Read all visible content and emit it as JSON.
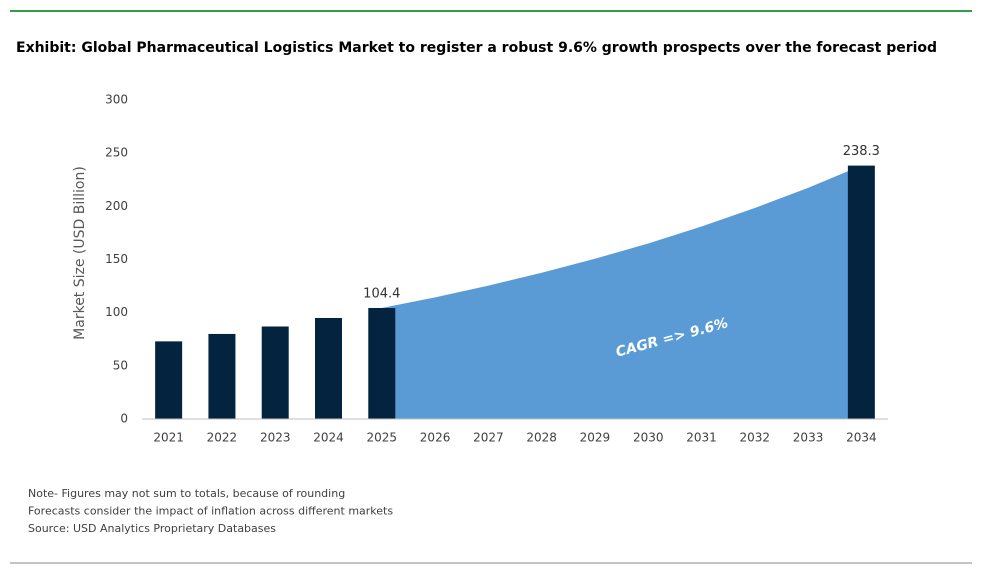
{
  "chart_data": {
    "type": "bar",
    "title": "Exhibit: Global Pharmaceutical Logistics Market to register a robust 9.6% growth prospects over the forecast period",
    "y_label": "Market Size (USD Billion)",
    "annotation": "CAGR => 9.6%",
    "categories": [
      "2021",
      "2022",
      "2023",
      "2024",
      "2025",
      "2026",
      "2027",
      "2028",
      "2029",
      "2030",
      "2031",
      "2032",
      "2033",
      "2034"
    ],
    "series": [
      {
        "type": "bar",
        "color": "#03233f",
        "values": [
          73,
          80,
          87,
          95,
          104.4,
          null,
          null,
          null,
          null,
          null,
          null,
          null,
          null,
          238.3
        ],
        "value_labels": [
          null,
          null,
          null,
          null,
          "104.4",
          null,
          null,
          null,
          null,
          null,
          null,
          null,
          null,
          "238.3"
        ]
      },
      {
        "type": "area",
        "color": "#5b9bd5",
        "values": [
          null,
          null,
          null,
          null,
          104.4,
          114.4,
          125.4,
          137.5,
          150.7,
          165.1,
          181.0,
          198.4,
          217.4,
          238.3
        ]
      }
    ],
    "ylim": [
      0,
      300
    ],
    "yticks": [
      0,
      50,
      100,
      150,
      200,
      250,
      300
    ],
    "grid": false,
    "notes": [
      "Note- Figures may not sum to totals, because of rounding",
      "Forecasts consider the impact of inflation across different markets",
      "Source: USD Analytics Proprietary Databases"
    ]
  }
}
